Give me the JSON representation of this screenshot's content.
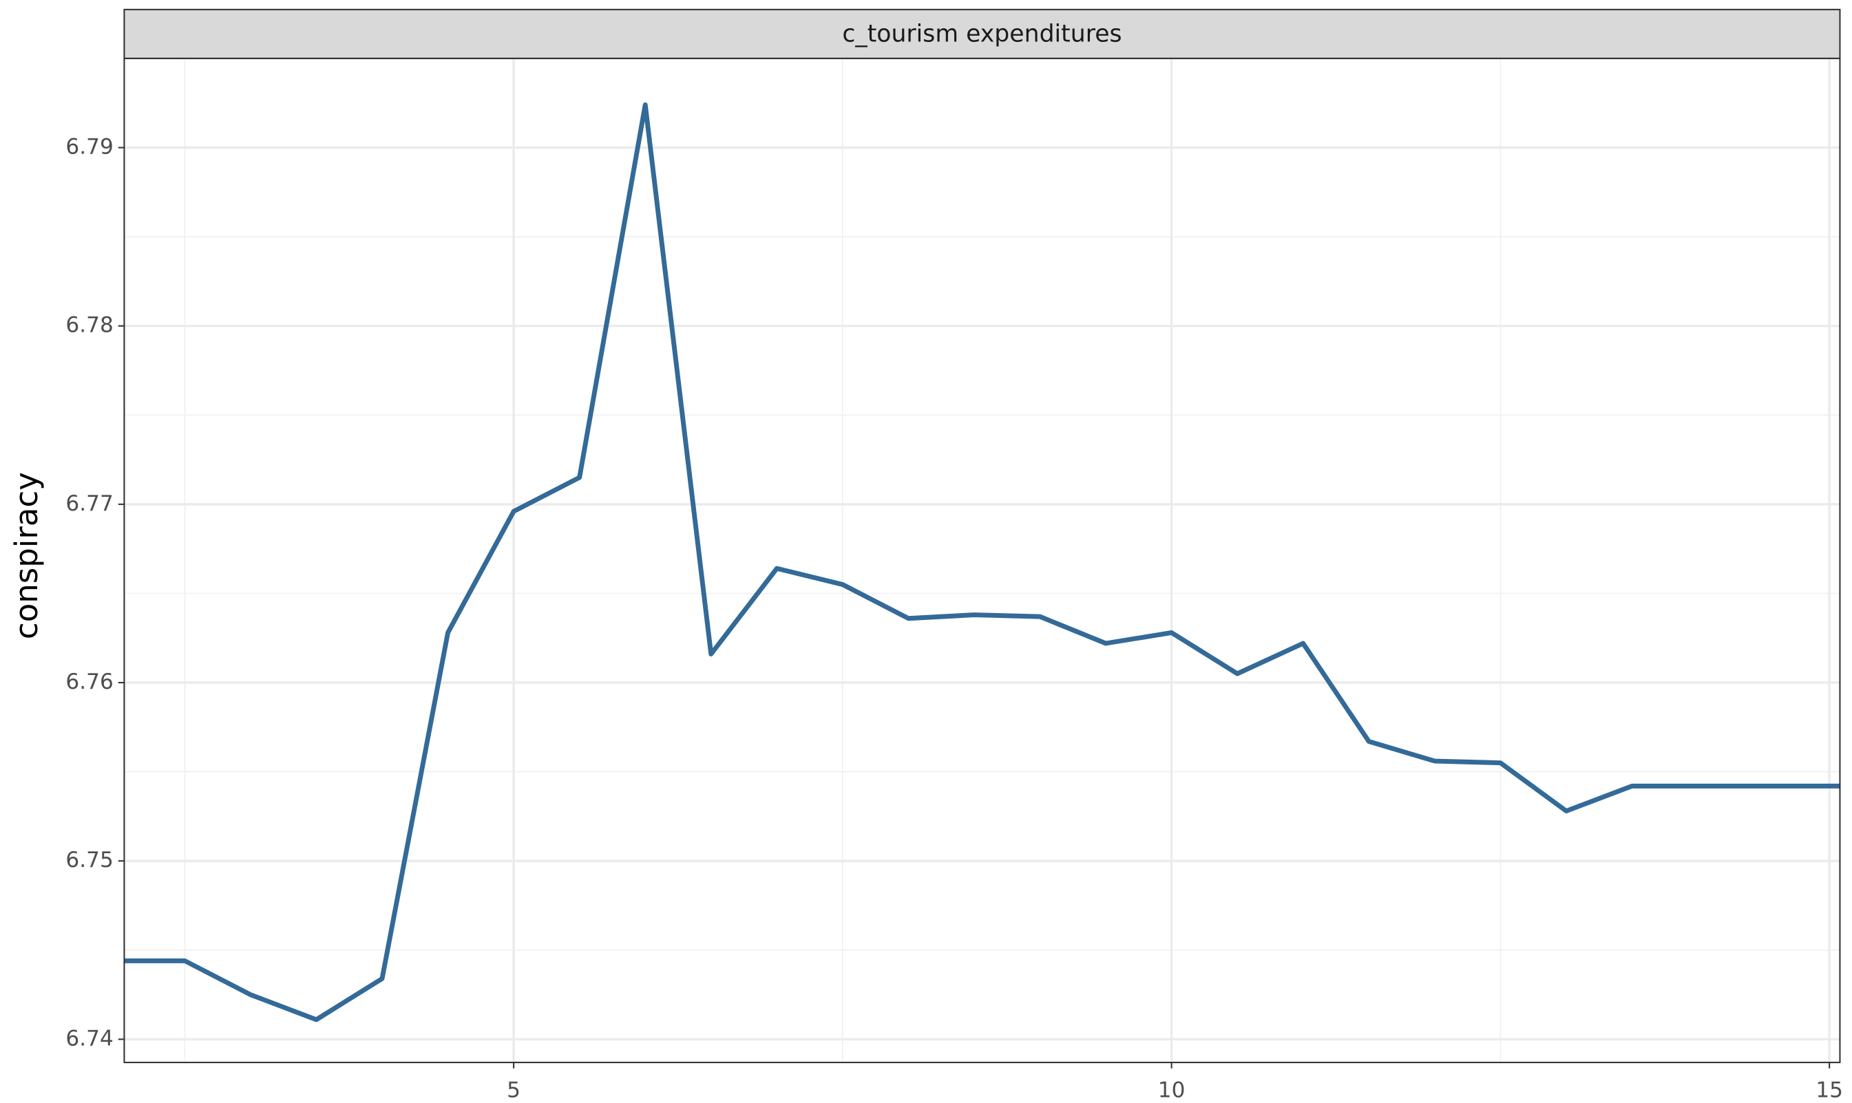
{
  "chart_data": {
    "type": "line",
    "title": "c_tourism expenditures",
    "y_label": "conspiracy",
    "x": [
      2.04,
      2.5,
      3,
      3.5,
      4,
      4.5,
      5,
      5.5,
      6,
      6.5,
      7,
      7.5,
      8,
      8.5,
      9,
      9.5,
      10,
      10.5,
      11,
      11.5,
      12,
      12.5,
      13,
      13.5,
      14,
      14.5,
      15.08
    ],
    "series": [
      {
        "name": "conspiracy",
        "color": "#336a98",
        "values": [
          6.7444,
          6.7444,
          6.7425,
          6.7411,
          6.7434,
          6.7628,
          6.7696,
          6.7715,
          6.7924,
          6.7616,
          6.7664,
          6.7655,
          6.7636,
          6.7638,
          6.7637,
          6.7622,
          6.7628,
          6.7605,
          6.7622,
          6.7567,
          6.7556,
          6.7555,
          6.7528,
          6.7542,
          6.7542,
          6.7542,
          6.7542
        ]
      }
    ],
    "xlim": [
      2.04,
      15.08
    ],
    "ylim": [
      6.7387,
      6.795
    ],
    "xticks": [
      5,
      10,
      15
    ],
    "yticks": [
      6.74,
      6.75,
      6.76,
      6.77,
      6.78,
      6.79
    ],
    "grid": true
  }
}
